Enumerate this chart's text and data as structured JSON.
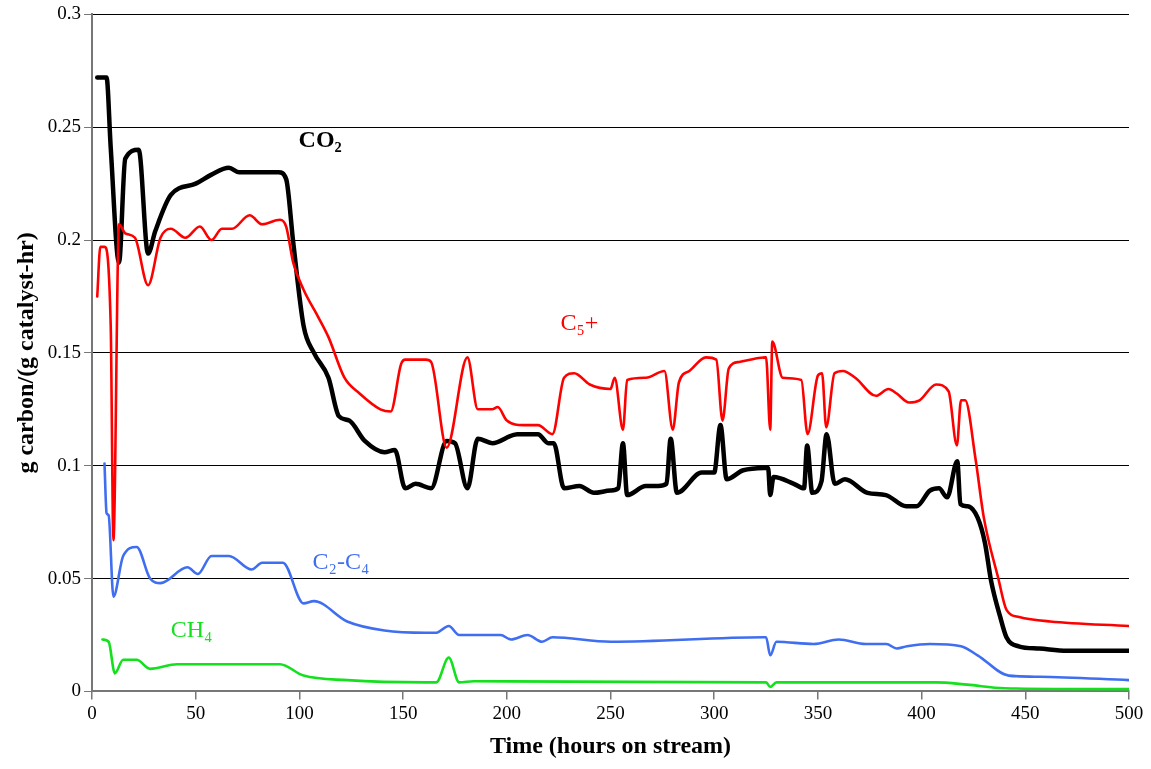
{
  "chart_data": {
    "type": "line",
    "xlabel": "Time (hours on stream)",
    "ylabel": "g carbon/(g catalyst-hr)",
    "xlim": [
      0,
      500
    ],
    "xticks": [
      0,
      50,
      100,
      150,
      200,
      250,
      300,
      350,
      400,
      450,
      500
    ],
    "ylim": [
      0,
      0.3
    ],
    "yticks": [
      0,
      0.05,
      0.1,
      0.15,
      0.2,
      0.25,
      0.3
    ],
    "grid": "y",
    "legend": false,
    "marker": "none",
    "line_style": "solid",
    "series": [
      {
        "name": "C₅+",
        "color": "#ff0000",
        "x": [
          2.5,
          4,
          6,
          9,
          10.3,
          13,
          16,
          20.7,
          27,
          33,
          38,
          45,
          52,
          57.6,
          62.6,
          67.5,
          76,
          82,
          90.6,
          93.6,
          97,
          102,
          109,
          114,
          121.7,
          129,
          139,
          144,
          149,
          151,
          161,
          163.5,
          171,
          181,
          186,
          193,
          195.6,
          200,
          208,
          215,
          222,
          227.6,
          232.5,
          240,
          250,
          252,
          256,
          258,
          267,
          276,
          280,
          283,
          288,
          296,
          301,
          304,
          307,
          312,
          325,
          327,
          328,
          333,
          342,
          345,
          350,
          352,
          354,
          358,
          362,
          368,
          378,
          384,
          388,
          394,
          399,
          407,
          413,
          417,
          419,
          421,
          426,
          430,
          437,
          441,
          447,
          462,
          500
        ],
        "values": [
          0.175,
          0.197,
          0.197,
          0.162,
          0.067,
          0.207,
          0.203,
          0.201,
          0.18,
          0.201,
          0.205,
          0.201,
          0.206,
          0.2,
          0.205,
          0.205,
          0.211,
          0.207,
          0.209,
          0.206,
          0.19,
          0.178,
          0.166,
          0.157,
          0.139,
          0.132,
          0.125,
          0.124,
          0.145,
          0.147,
          0.147,
          0.146,
          0.108,
          0.148,
          0.125,
          0.125,
          0.126,
          0.12,
          0.118,
          0.118,
          0.114,
          0.139,
          0.141,
          0.136,
          0.134,
          0.139,
          0.116,
          0.138,
          0.139,
          0.142,
          0.116,
          0.137,
          0.142,
          0.148,
          0.147,
          0.12,
          0.143,
          0.146,
          0.148,
          0.116,
          0.155,
          0.139,
          0.138,
          0.114,
          0.14,
          0.141,
          0.117,
          0.141,
          0.142,
          0.139,
          0.131,
          0.134,
          0.132,
          0.128,
          0.129,
          0.136,
          0.133,
          0.109,
          0.129,
          0.129,
          0.103,
          0.077,
          0.05,
          0.036,
          0.033,
          0.031,
          0.029
        ]
      },
      {
        "name": "CO₂",
        "color": "#000000",
        "x": [
          2.5,
          7,
          9,
          10.3,
          13,
          16,
          22.5,
          27,
          30.5,
          38,
          50,
          57.6,
          66,
          71,
          90,
          93.6,
          97,
          102,
          107,
          114,
          119,
          124,
          131.5,
          141,
          146,
          151,
          156,
          163.5,
          171,
          175,
          181,
          186,
          193,
          205,
          215,
          220,
          222.6,
          227.6,
          235,
          242,
          250,
          253.7,
          256,
          258,
          267,
          273,
          277,
          279,
          282,
          294,
          300,
          303,
          306,
          314,
          326,
          327,
          328.6,
          338.4,
          343.3,
          344.8,
          347.3,
          351.7,
          354.2,
          358.1,
          363,
          373.9,
          382.8,
          392.6,
          397.5,
          404,
          408.4,
          412.3,
          417.2,
          418.7,
          422.2,
          427,
          430.5,
          433.5,
          437.9,
          440.9,
          446.8,
          456.7,
          470,
          500
        ],
        "values": [
          0.272,
          0.272,
          0.241,
          null,
          0.19,
          0.236,
          0.24,
          0.194,
          0.204,
          0.22,
          0.225,
          0.229,
          0.232,
          0.23,
          0.23,
          0.227,
          0.199,
          0.162,
          0.15,
          0.139,
          0.122,
          0.12,
          0.111,
          0.106,
          0.107,
          0.09,
          0.092,
          0.09,
          0.111,
          0.11,
          0.09,
          0.112,
          0.11,
          0.114,
          0.114,
          0.11,
          0.11,
          0.09,
          0.091,
          0.088,
          0.089,
          0.09,
          0.11,
          0.087,
          0.091,
          0.091,
          0.092,
          0.112,
          0.088,
          0.097,
          0.097,
          0.118,
          0.094,
          0.098,
          0.099,
          0.087,
          0.095,
          0.092,
          0.09,
          0.109,
          0.088,
          0.093,
          0.114,
          0.092,
          0.094,
          0.088,
          0.087,
          0.082,
          0.082,
          0.089,
          0.09,
          0.086,
          0.102,
          0.083,
          0.082,
          0.077,
          0.066,
          0.049,
          0.033,
          0.024,
          0.02,
          0.019,
          0.018,
          0.018
        ]
      },
      {
        "name": "C₂-C₄",
        "color": "#3f6ef0",
        "x": [
          6,
          7,
          8,
          10.3,
          15,
          21.5,
          28,
          33,
          46,
          51,
          57.6,
          66,
          77,
          82,
          92,
          102,
          107,
          123,
          141,
          161,
          166,
          172,
          177,
          197,
          202,
          210,
          217,
          222,
          250,
          325,
          327,
          330,
          348,
          360,
          373,
          383,
          388,
          393,
          404,
          419,
          427,
          442,
          457,
          500
        ],
        "values": [
          0.101,
          0.079,
          0.078,
          0.042,
          0.06,
          0.064,
          0.05,
          0.048,
          0.055,
          0.052,
          0.06,
          0.06,
          0.054,
          0.057,
          0.057,
          0.039,
          0.04,
          0.031,
          0.027,
          0.026,
          0.026,
          0.029,
          0.025,
          0.025,
          0.023,
          0.025,
          0.022,
          0.024,
          0.022,
          0.024,
          0.016,
          0.022,
          0.021,
          0.023,
          0.021,
          0.021,
          0.019,
          0.02,
          0.021,
          0.02,
          0.016,
          0.007,
          0.0065,
          0.005
        ]
      },
      {
        "name": "CH₄",
        "color": "#14e01e",
        "x": [
          5,
          8,
          11,
          15,
          21.5,
          28,
          41,
          67.5,
          90.6,
          102,
          123,
          161,
          166,
          172,
          177,
          184,
          325,
          327,
          330,
          407,
          422,
          440,
          500
        ],
        "values": [
          0.023,
          0.022,
          0.008,
          0.014,
          0.014,
          0.01,
          0.012,
          0.012,
          0.012,
          0.007,
          0.005,
          0.004,
          0.004,
          0.015,
          0.004,
          0.0045,
          0.004,
          0.002,
          0.004,
          0.004,
          0.003,
          0.0014,
          0.001
        ]
      }
    ]
  }
}
